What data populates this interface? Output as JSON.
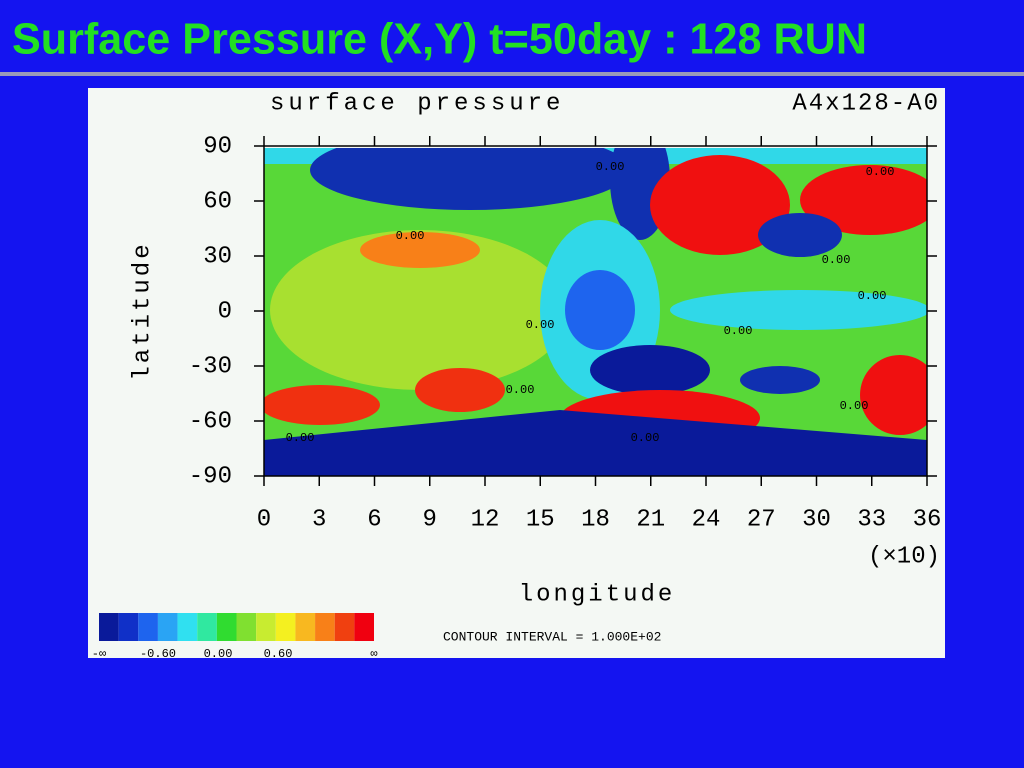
{
  "header": {
    "title": "Surface Pressure (X,Y) t=50day : 128 RUN"
  },
  "chart_data": {
    "type": "contour",
    "title": "surface pressure",
    "subtitle": "A4x128-A0",
    "x_label": "longitude",
    "x_scale_label": "(×10)",
    "y_label": "latitude",
    "xlim": [
      0,
      36
    ],
    "xticks": [
      0,
      3,
      6,
      9,
      12,
      15,
      18,
      21,
      24,
      27,
      30,
      33,
      36
    ],
    "ylim": [
      -90,
      90
    ],
    "yticks": [
      -90,
      -60,
      -30,
      0,
      30,
      60,
      90
    ],
    "contour_labels": [
      "0.00",
      "0.00",
      "0.00",
      "0.00",
      "0.00",
      "0.00",
      "0.00",
      "0.00",
      "0.00",
      "0.00",
      "0.00"
    ],
    "colorbar": {
      "colors": [
        "#0a1a9a",
        "#1030c8",
        "#1e64ee",
        "#2aa4f4",
        "#30e0f0",
        "#30e8a0",
        "#30dc30",
        "#80e030",
        "#c8ec30",
        "#f4f020",
        "#f8b820",
        "#f88018",
        "#f04010",
        "#f00010"
      ],
      "labels": [
        "-∞",
        "-0.60",
        "0.00",
        "0.60",
        "∞"
      ]
    },
    "note": "CONTOUR INTERVAL = 1.000E+02"
  }
}
